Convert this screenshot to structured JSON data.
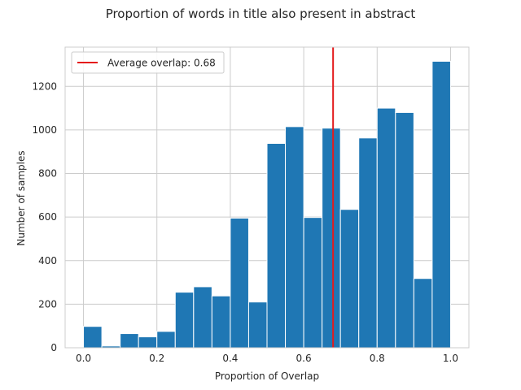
{
  "chart_data": {
    "type": "bar",
    "title": "Proportion of words in title also present in abstract",
    "xlabel": "Proportion of Overlap",
    "ylabel": "Number of samples",
    "bin_edges": [
      0.0,
      0.05,
      0.1,
      0.15,
      0.2,
      0.25,
      0.3,
      0.35,
      0.4,
      0.45,
      0.5,
      0.55,
      0.6,
      0.65,
      0.7,
      0.75,
      0.8,
      0.85,
      0.9,
      0.95,
      1.0
    ],
    "values": [
      98,
      8,
      65,
      50,
      75,
      255,
      280,
      238,
      595,
      210,
      938,
      1015,
      598,
      1008,
      635,
      963,
      1100,
      1080,
      318,
      1315
    ],
    "xlim": [
      -0.05,
      1.05
    ],
    "ylim": [
      0,
      1380
    ],
    "xticks": [
      0.0,
      0.2,
      0.4,
      0.6,
      0.8,
      1.0
    ],
    "xtick_labels": [
      "0.0",
      "0.2",
      "0.4",
      "0.6",
      "0.8",
      "1.0"
    ],
    "yticks": [
      0,
      200,
      400,
      600,
      800,
      1000,
      1200
    ],
    "ytick_labels": [
      "0",
      "200",
      "400",
      "600",
      "800",
      "1000",
      "1200"
    ],
    "grid": true,
    "bar_color": "#1f77b4",
    "reference_line": {
      "x": 0.68,
      "color": "#e41a1c"
    },
    "legend": {
      "position": "top-left",
      "label": "Average overlap: 0.68"
    }
  }
}
